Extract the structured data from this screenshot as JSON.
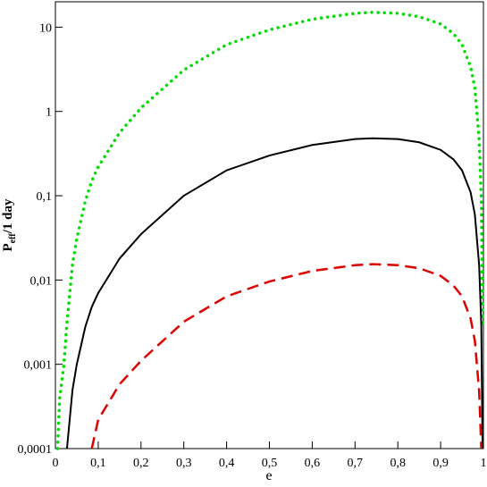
{
  "chart_data": {
    "type": "line",
    "x_label": "e",
    "y_label": {
      "main": "P",
      "sub": "eff",
      "rest": "/1 day"
    },
    "log_y": true,
    "xlim": [
      0,
      1
    ],
    "ylim": [
      0.0001,
      20
    ],
    "xticks": [
      0,
      {
        "value": 0.1,
        "label": "0,1"
      },
      {
        "value": 0.2,
        "label": "0,2"
      },
      {
        "value": 0.3,
        "label": "0,3"
      },
      {
        "value": 0.4,
        "label": "0,4"
      },
      {
        "value": 0.5,
        "label": "0,5"
      },
      {
        "value": 0.6,
        "label": "0,6"
      },
      {
        "value": 0.7,
        "label": "0,7"
      },
      {
        "value": 0.8,
        "label": "0,8"
      },
      {
        "value": 0.9,
        "label": "0,9"
      },
      1
    ],
    "yticks": [
      {
        "value": 0.0001,
        "label": "0,0001"
      },
      {
        "value": 0.001,
        "label": "0,001"
      },
      {
        "value": 0.01,
        "label": "0,01"
      },
      {
        "value": 0.1,
        "label": "0,1"
      },
      1,
      10
    ],
    "x": [
      0.005,
      0.01,
      0.02,
      0.027,
      0.04,
      0.05,
      0.07,
      0.085,
      0.1,
      0.15,
      0.2,
      0.3,
      0.4,
      0.5,
      0.6,
      0.7,
      0.74,
      0.8,
      0.85,
      0.9,
      0.93,
      0.95,
      0.97,
      0.98,
      0.99,
      0.995,
      0.998
    ],
    "series": [
      {
        "color": "#00dd00",
        "style": "dotted",
        "values": [
          0.0001,
          0.0004,
          0.001,
          0.0031,
          0.0155,
          0.031,
          0.087,
          0.15,
          0.22,
          0.56,
          1.1,
          3.1,
          6.2,
          9.3,
          12.4,
          14.6,
          15,
          14.6,
          13.3,
          10.9,
          8.4,
          6.2,
          3.4,
          1.9,
          0.47,
          0.09,
          0.003
        ]
      },
      {
        "color": "#000000",
        "style": "solid",
        "values": [
          null,
          null,
          null,
          0.0001,
          0.0005,
          0.001,
          0.0028,
          0.0048,
          0.007,
          0.018,
          0.035,
          0.1,
          0.2,
          0.3,
          0.4,
          0.47,
          0.48,
          0.47,
          0.43,
          0.35,
          0.27,
          0.2,
          0.11,
          0.06,
          0.015,
          0.003,
          0.0001
        ]
      },
      {
        "color": "#dd0000",
        "style": "dashed",
        "values": [
          null,
          null,
          null,
          null,
          null,
          null,
          null,
          0.0001,
          0.00022,
          0.00058,
          0.0011,
          0.0032,
          0.0064,
          0.0096,
          0.0128,
          0.015,
          0.0154,
          0.015,
          0.0138,
          0.0112,
          0.0086,
          0.0064,
          0.0035,
          0.0019,
          0.00048,
          0.0001,
          null
        ]
      }
    ]
  }
}
